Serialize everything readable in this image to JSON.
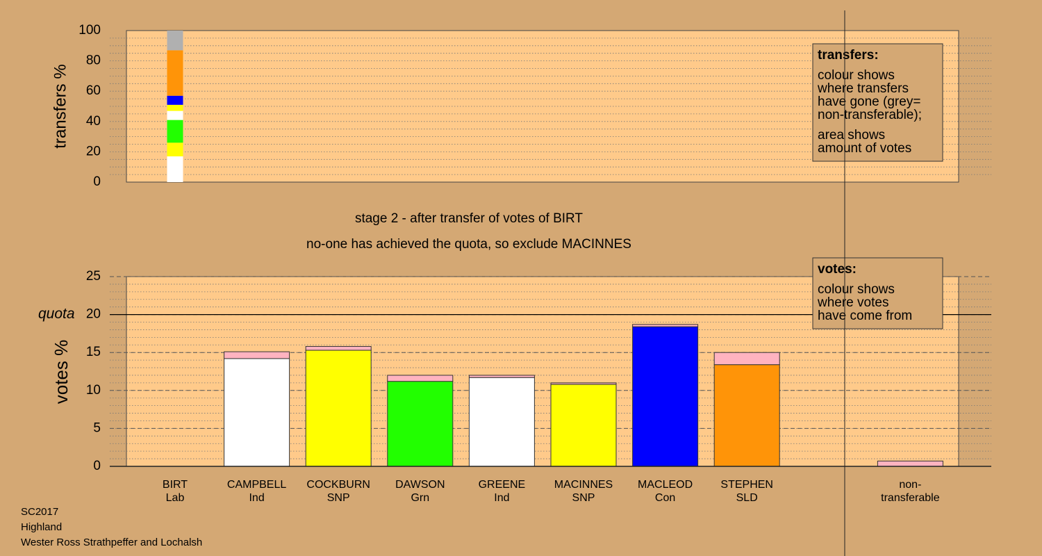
{
  "chart_data": [
    {
      "type": "stacked_column",
      "ylabel": "transfers %",
      "ylim": [
        0,
        100
      ],
      "yticks": [
        0,
        20,
        40,
        60,
        80,
        100
      ],
      "minor_step": 5,
      "values": [
        17,
        9,
        15,
        6,
        4,
        6,
        30,
        13
      ],
      "colors": [
        "#ffffff",
        "#ffff00",
        "#22ff00",
        "#ffffff",
        "#ffff00",
        "#0000ff",
        "#ff9408",
        "#b0b0b0"
      ],
      "legend": {
        "title": "transfers:",
        "groups": [
          [
            "colour shows",
            "where transfers",
            "have gone (grey=",
            "non-transferable);"
          ],
          [
            "area shows",
            "amount of votes"
          ]
        ]
      }
    },
    {
      "type": "stacked_bar",
      "ylabel": "votes %",
      "ylim": [
        0,
        25
      ],
      "yticks": [
        0,
        5,
        10,
        15,
        20,
        25
      ],
      "minor_step": 1,
      "quota": {
        "value": 20,
        "label": "quota"
      },
      "categories": [
        [
          "BIRT",
          "Lab"
        ],
        [
          "CAMPBELL",
          "Ind"
        ],
        [
          "COCKBURN",
          "SNP"
        ],
        [
          "DAWSON",
          "Grn"
        ],
        [
          "GREENE",
          "Ind"
        ],
        [
          "MACINNES",
          "SNP"
        ],
        [
          "MACLEOD",
          "Con"
        ],
        [
          "STEPHEN",
          "SLD"
        ],
        null,
        [
          "non-",
          "transferable"
        ]
      ],
      "series": [
        {
          "colors": [
            "#ffffff",
            "#ffffff",
            "#ffff00",
            "#22ff00",
            "#ffffff",
            "#ffff00",
            "#0000ff",
            "#ff9408",
            null,
            "#ffffff"
          ],
          "values": [
            0,
            14.2,
            15.3,
            11.2,
            11.7,
            10.8,
            18.4,
            13.4,
            null,
            0
          ]
        },
        {
          "color": "#ffb3c0",
          "values": [
            0,
            0.9,
            0.5,
            0.8,
            0.3,
            0.2,
            0.3,
            1.6,
            null,
            0.7
          ]
        }
      ],
      "legend": {
        "title": "votes:",
        "groups": [
          [
            "colour shows",
            "where votes",
            "have come from"
          ]
        ]
      }
    }
  ],
  "stage": [
    "stage 2 - after transfer of votes of BIRT",
    "no-one has achieved the quota, so exclude MACINNES"
  ],
  "footer": [
    "SC2017",
    "Highland",
    "Wester Ross Strathpeffer and Lochalsh"
  ]
}
